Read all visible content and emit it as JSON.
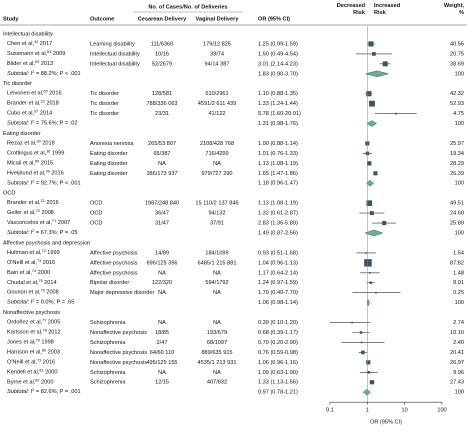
{
  "header": {
    "study": "Study",
    "outcome": "Outcome",
    "cases": "No. of Cases/No. of Deliveries",
    "cesarean": "Cesarean Delivery",
    "vaginal": "Vaginal Delivery",
    "or_ci": "OR (95% CI)",
    "decreased": "Decreased Risk",
    "increased": "Increased Risk",
    "weight": "Weight, %"
  },
  "groups": [
    {
      "name": "Intellectual disability",
      "studies": [
        {
          "author": "Chen et al,",
          "ref": "42",
          "year": "2017",
          "outcome": "Learning disability",
          "cesarean": "111/6360",
          "vaginal": "179/12 825",
          "or": 1.25,
          "lo": 0.99,
          "hi": 1.59,
          "or_ci": "1.25 (0.99-1.59)",
          "weight": 40.56,
          "weight_label": "40.56"
        },
        {
          "author": "Sussmann et al,",
          "ref": "64",
          "year": "2009",
          "outcome": "Intellectual disability",
          "cesarean": "10/16",
          "vaginal": "39/74",
          "or": 1.5,
          "lo": 0.49,
          "hi": 4.54,
          "or_ci": "1.50 (0.49-4.54)",
          "weight": 20.75,
          "weight_label": "20.75"
        },
        {
          "author": "Bilder et al,",
          "ref": "63",
          "year": "2013",
          "outcome": "Intellectual disability",
          "cesarean": "52/2679",
          "vaginal": "94/14 387",
          "or": 3.01,
          "lo": 2.14,
          "hi": 4.23,
          "or_ci": "3.01 (2.14-4.23)",
          "weight": 38.69,
          "weight_label": "38.69"
        }
      ],
      "subtotal": {
        "lead": "Subtotal: I",
        "sup": "2",
        "rest": " = 88.2%; P < .001",
        "or": 1.83,
        "lo": 0.9,
        "hi": 3.7,
        "or_ci": "1.83 (0.90-3.70)",
        "weight": 100,
        "weight_label": "100"
      }
    },
    {
      "name": "Tic disorder",
      "studies": [
        {
          "author": "Leivonen et al,",
          "ref": "65",
          "year": "2016",
          "outcome": "Tic disorder",
          "cesarean": "128/581",
          "vaginal": "610/2961",
          "or": 1.1,
          "lo": 0.88,
          "hi": 1.35,
          "or_ci": "1.10 (0.88-1.35)",
          "weight": 42.32,
          "weight_label": "42.32"
        },
        {
          "author": "Brander et al,",
          "ref": "22",
          "year": "2018",
          "outcome": "Tic disorder",
          "cesarean": "788/336 063",
          "vaginal": "4591/2 611 439",
          "or": 1.33,
          "lo": 1.24,
          "hi": 1.44,
          "or_ci": "1.33 (1.24-1.44)",
          "weight": 52.93,
          "weight_label": "52.93"
        },
        {
          "author": "Cubo et al,",
          "ref": "67",
          "year": "2014",
          "outcome": "Tic disorder",
          "cesarean": "23/31",
          "vaginal": "41/122",
          "or": 5.78,
          "lo": 1.6,
          "hi": 20.91,
          "or_ci": "5.78 (1.60-20.91)",
          "weight": 4.75,
          "weight_label": "4.75"
        }
      ],
      "subtotal": {
        "lead": "Subtotal: I",
        "sup": "2",
        "rest": " = 75.6%; P = .02",
        "or": 1.31,
        "lo": 0.98,
        "hi": 1.76,
        "or_ci": "1.31 (0.98-1.76)",
        "weight": 100,
        "weight_label": "100"
      }
    },
    {
      "name": "Eating disorder",
      "studies": [
        {
          "author": "Rezaz et al,",
          "ref": "30",
          "year": "2018",
          "outcome": "Anorexia nervosa",
          "cesarean": "265/53 807",
          "vaginal": "2108/428 768",
          "or": 1.0,
          "lo": 0.88,
          "hi": 1.14,
          "or_ci": "1.00 (0.88-1.14)",
          "weight": 25.97,
          "weight_label": "25.97"
        },
        {
          "author": "Crottingus et al,",
          "ref": "36",
          "year": "1999",
          "outcome": "Eating disorder",
          "cesarean": "65/387",
          "vaginal": "716/4299",
          "or": 1.01,
          "lo": 0.76,
          "hi": 1.33,
          "or_ci": "1.01 (0.76-1.33)",
          "weight": 19.34,
          "weight_label": "19.34"
        },
        {
          "author": "Micali et al,",
          "ref": "66",
          "year": "2015",
          "outcome": "Eating disorder",
          "cesarean": "NA",
          "vaginal": "NA",
          "or": 1.13,
          "lo": 1.08,
          "hi": 1.19,
          "or_ci": "1.13 (1.08-1.19)",
          "weight": 28.29,
          "weight_label": "28.29"
        },
        {
          "author": "Hvelplund et al,",
          "ref": "26",
          "year": "2016",
          "outcome": "Eating disorder",
          "cesarean": "386/173 937",
          "vaginal": "979/727 290",
          "or": 1.65,
          "lo": 1.47,
          "hi": 1.86,
          "or_ci": "1.65 (1.47-1.86)",
          "weight": 26.39,
          "weight_label": "26.39"
        }
      ],
      "subtotal": {
        "lead": "Subtotal: I",
        "sup": "2",
        "rest": " = 92.7%; P < .001",
        "or": 1.18,
        "lo": 0.96,
        "hi": 1.47,
        "or_ci": "1.18 (0.96-1.47)",
        "weight": 100,
        "weight_label": "100"
      }
    },
    {
      "name": "OCD",
      "studies": [
        {
          "author": "Brander et al,",
          "ref": "21",
          "year": "2016",
          "outcome": "OCD",
          "cesarean": "1987/248 840",
          "vaginal": "15 110/2 137 846",
          "or": 1.13,
          "lo": 1.08,
          "hi": 1.19,
          "or_ci": "1.13 (1.08-1.19)",
          "weight": 49.51,
          "weight_label": "49.51"
        },
        {
          "author": "Geller et al,",
          "ref": "70",
          "year": "2008",
          "outcome": "OCD",
          "cesarean": "36/47",
          "vaginal": "94/132",
          "or": 1.32,
          "lo": 0.61,
          "hi": 2.87,
          "or_ci": "1.32 (0.61-2.87)",
          "weight": 24.6,
          "weight_label": "24.60"
        },
        {
          "author": "Vasconcelos et al,",
          "ref": "71",
          "year": "2007",
          "outcome": "OCD",
          "cesarean": "31/47",
          "vaginal": "37/91",
          "or": 2.83,
          "lo": 1.36,
          "hi": 5.89,
          "or_ci": "2.83 (1.36-5.89)",
          "weight": 25.89,
          "weight_label": "25.89"
        }
      ],
      "subtotal": {
        "lead": "Subtotal: I",
        "sup": "2",
        "rest": " = 67.3%; P = .05",
        "or": 1.49,
        "lo": 0.87,
        "hi": 2.56,
        "or_ci": "1.49 (0.87-2.56)",
        "weight": 100,
        "weight_label": "100"
      }
    },
    {
      "name": "Affective psychosis and depression",
      "studies": [
        {
          "author": "Hultman et al,",
          "ref": "72",
          "year": "1999",
          "outcome": "Affective psychosis",
          "cesarean": "14/89",
          "vaginal": "184/1099",
          "or": 0.93,
          "lo": 0.51,
          "hi": 1.68,
          "or_ci": "0.93 (0.51-1.68)",
          "weight": 1.54,
          "weight_label": "1.54"
        },
        {
          "author": "O'Neill et al,",
          "ref": "73",
          "year": "2016",
          "outcome": "Affective psychosis",
          "cesarean": "696/125 356",
          "vaginal": "6485/1 215 881",
          "or": 1.04,
          "lo": 0.96,
          "hi": 1.13,
          "or_ci": "1.04 (0.96-1.13)",
          "weight": 87.82,
          "weight_label": "87.82"
        },
        {
          "author": "Bain et al,",
          "ref": "74",
          "year": "2000",
          "outcome": "Affective psychosis",
          "cesarean": "NA",
          "vaginal": "NA",
          "or": 1.17,
          "lo": 0.64,
          "hi": 2.14,
          "or_ci": "1.17 (0.64-2.14)",
          "weight": 1.48,
          "weight_label": "1.48"
        },
        {
          "author": "Chudal et al,",
          "ref": "75",
          "year": "2014",
          "outcome": "Bipolar disorder",
          "cesarean": "122/320",
          "vaginal": "594/1792",
          "or": 1.24,
          "lo": 0.97,
          "hi": 1.59,
          "or_ci": "1.24 (0.97-1.59)",
          "weight": 8.91,
          "weight_label": "8.91"
        },
        {
          "author": "Gourion et al,",
          "ref": "76",
          "year": "2008",
          "outcome": "Major depressive disorder",
          "cesarean": "NA",
          "vaginal": "NA",
          "or": 1.7,
          "lo": 0.4,
          "hi": 7.7,
          "or_ci": "1.70 (0.40-7.70)",
          "weight": 0.25,
          "weight_label": "0.25"
        }
      ],
      "subtotal": {
        "lead": "Subtotal: I",
        "sup": "2",
        "rest": " = 0.0%; P = .65",
        "or": 1.06,
        "lo": 0.98,
        "hi": 1.14,
        "or_ci": "1.06 (0.98-1.14)",
        "weight": 100,
        "weight_label": "100"
      }
    },
    {
      "name": "Nonaffective psychosis",
      "studies": [
        {
          "author": "Ordoñez et al,",
          "ref": "77",
          "year": "2005",
          "outcome": "Schizophrenia",
          "cesarean": "NA",
          "vaginal": "NA",
          "or": 0.39,
          "lo": 0.1,
          "hi": 1.2,
          "or_ci": "0.39 (0.10-1.20)",
          "weight": 2.74,
          "weight_label": "2.74"
        },
        {
          "author": "Karlsson et al,",
          "ref": "78",
          "year": "2012",
          "outcome": "Nonaffective psychosis",
          "cesarean": "18/85",
          "vaginal": "193/679",
          "or": 0.68,
          "lo": 0.39,
          "hi": 1.17,
          "or_ci": "0.68 (0.39-1.17)",
          "weight": 10.1,
          "weight_label": "10.10"
        },
        {
          "author": "Jones et al,",
          "ref": "79",
          "year": "1998",
          "outcome": "Schizophrenia",
          "cesarean": "2/47",
          "vaginal": "68/1097",
          "or": 0.7,
          "lo": 0.2,
          "hi": 2.9,
          "or_ci": "0.70 (0.20-2.90)",
          "weight": 2.4,
          "weight_label": "2.40"
        },
        {
          "author": "Harrison et al,",
          "ref": "80",
          "year": "2003",
          "outcome": "Nonaffective psychosis",
          "cesarean": "64/60 110",
          "vaginal": "889/635 915",
          "or": 0.76,
          "lo": 0.59,
          "hi": 0.98,
          "or_ci": "0.76 (0.59-0.98)",
          "weight": 20.41,
          "weight_label": "20.41"
        },
        {
          "author": "O'Neill et al,",
          "ref": "73",
          "year": "2016",
          "outcome": "Nonaffective psychosis",
          "cesarean": "495/125 155",
          "vaginal": "4535/1 213 931",
          "or": 1.06,
          "lo": 0.96,
          "hi": 1.16,
          "or_ci": "1.06 (0.96-1.16)",
          "weight": 26.97,
          "weight_label": "26.97"
        },
        {
          "author": "Kendell et al,",
          "ref": "81",
          "year": "2000",
          "outcome": "Schizophrenia",
          "cesarean": "NA",
          "vaginal": "NA",
          "or": 1.09,
          "lo": 0.63,
          "hi": 1.9,
          "or_ci": "1.09 (0.63-1.90)",
          "weight": 9.96,
          "weight_label": "9.96"
        },
        {
          "author": "Byrne et al,",
          "ref": "82",
          "year": "2000",
          "outcome": "Schizophrenia",
          "cesarean": "12/15",
          "vaginal": "407/832",
          "or": 1.33,
          "lo": 1.13,
          "hi": 1.56,
          "or_ci": "1.33 (1.13-1.56)",
          "weight": 27.43,
          "weight_label": "27.43"
        }
      ],
      "subtotal": {
        "lead": "Subtotal: I",
        "sup": "2",
        "rest": " = 82.6%; P = .001",
        "or": 0.97,
        "lo": 0.78,
        "hi": 1.21,
        "or_ci": "0.97 (0.78-1.21)",
        "weight": 100,
        "weight_label": "100"
      }
    }
  ],
  "axis": {
    "label": "OR (95% CI)",
    "log": true,
    "xlim": [
      0.1,
      100
    ],
    "xticks": [
      0.1,
      1,
      10,
      100
    ],
    "ref_line": 1,
    "square_color": "#3b5566",
    "diamond_color": "#6fab9c"
  }
}
